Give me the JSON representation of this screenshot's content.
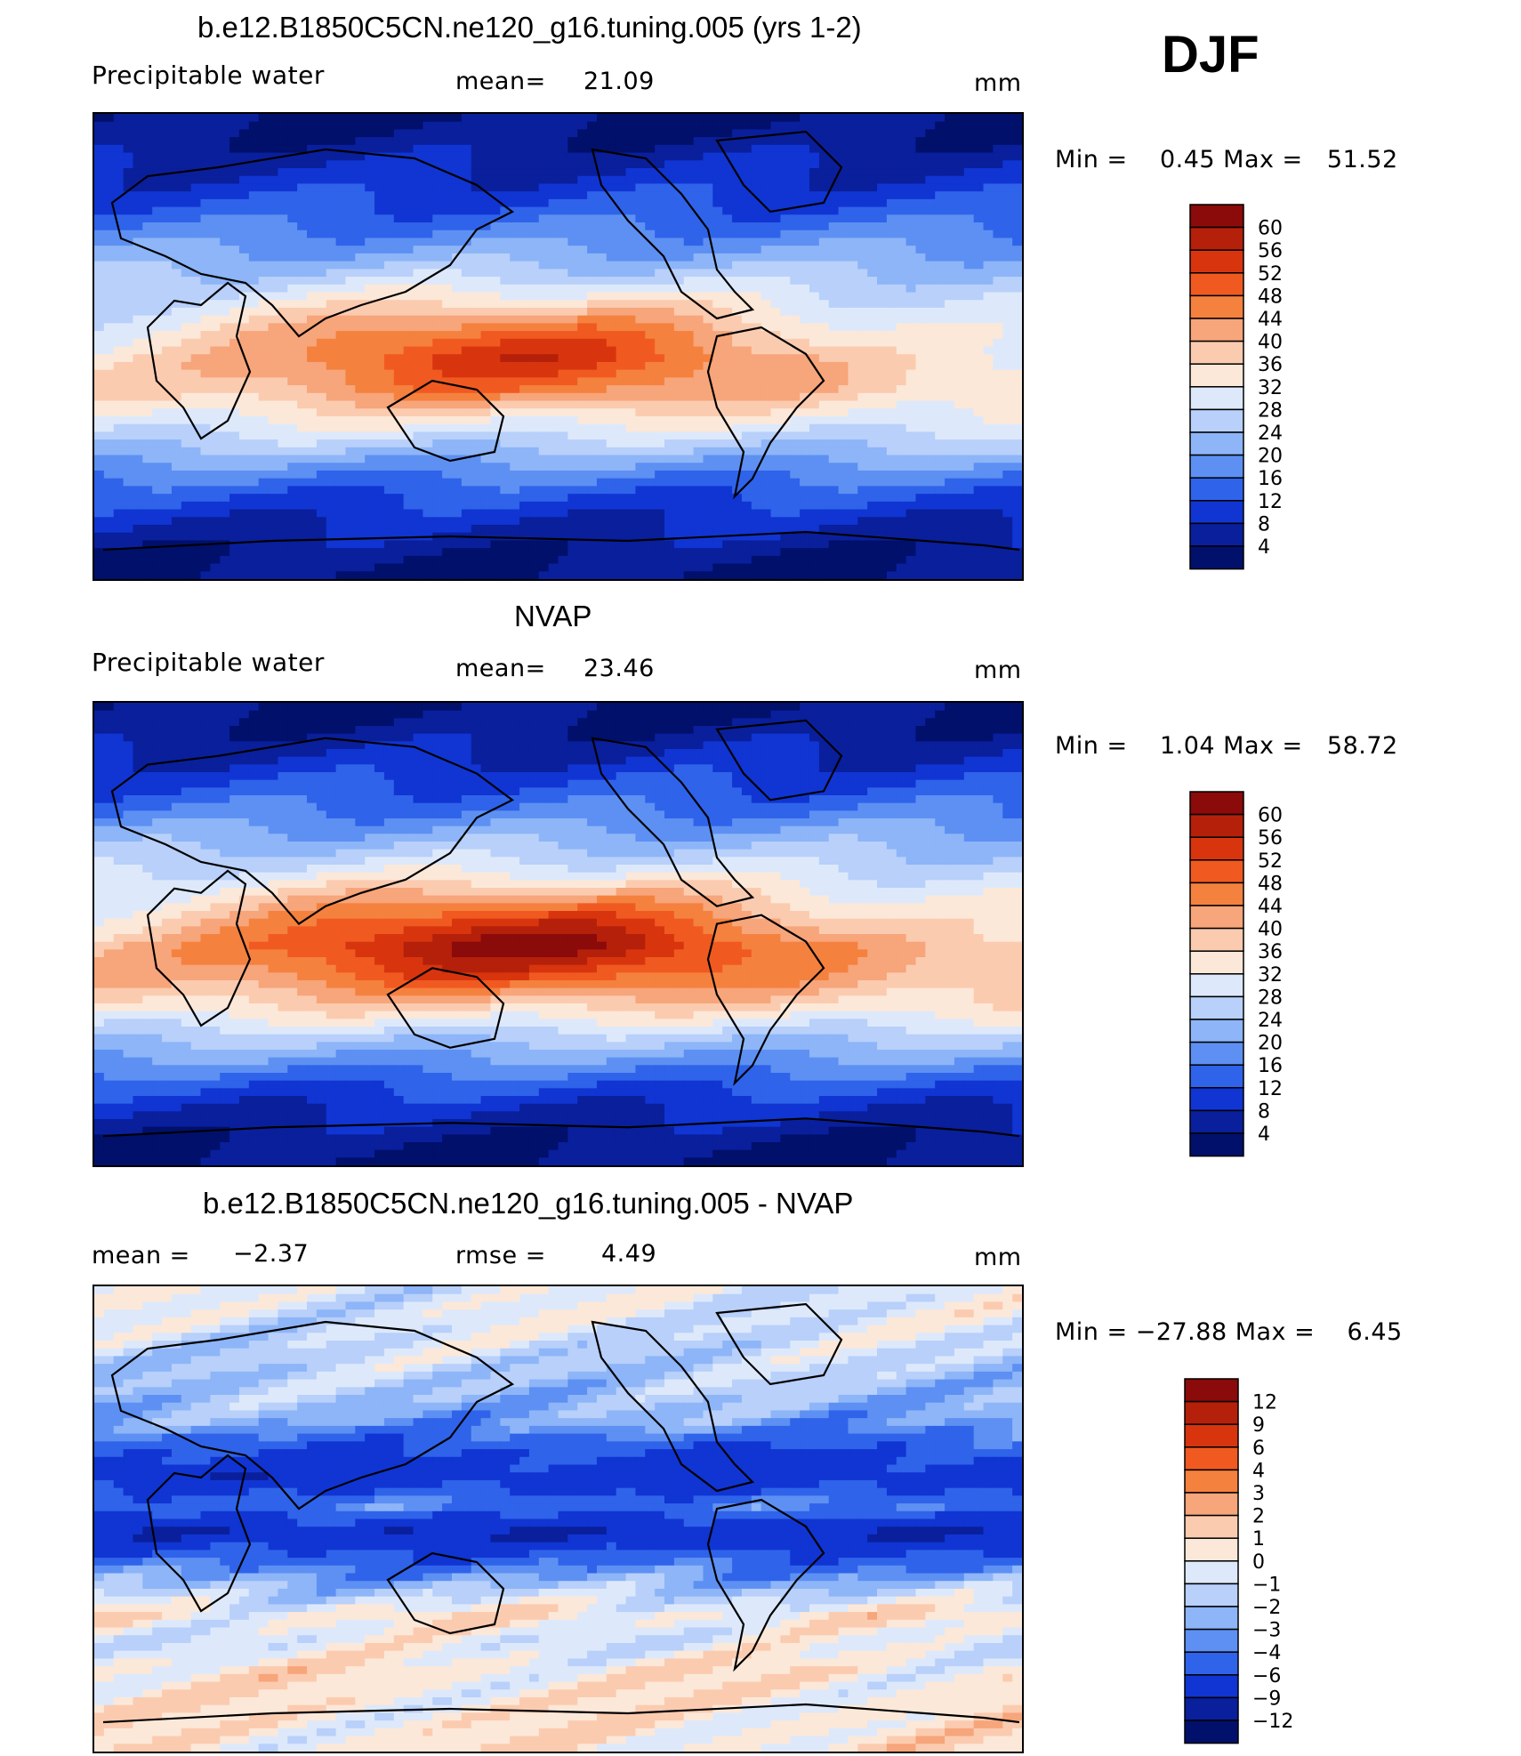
{
  "season": "DJF",
  "panels": [
    {
      "title": "b.e12.B1850C5CN.ne120_g16.tuning.005 (yrs 1-2)",
      "left_label": "Precipitable water",
      "center_label": "mean=",
      "center_value": "21.09",
      "units": "mm",
      "minmax_text": "Min =    0.45 Max =   51.52"
    },
    {
      "title": "NVAP",
      "left_label": "Precipitable water",
      "center_label": "mean=",
      "center_value": "23.46",
      "units": "mm",
      "minmax_text": "Min =    1.04 Max =   58.72"
    },
    {
      "title": "b.e12.B1850C5CN.ne120_g16.tuning.005 - NVAP",
      "left_label": "mean =",
      "left_value": "−2.37",
      "center_label": "rmse =",
      "center_value": "4.49",
      "units": "mm",
      "minmax_text": "Min = −27.88 Max =    6.45"
    }
  ],
  "chart_data": [
    {
      "type": "heatmap",
      "title": "b.e12.B1850C5CN.ne120_g16.tuning.005 (yrs 1-2)",
      "variable": "Precipitable water",
      "units": "mm",
      "mean": 21.09,
      "min": 0.45,
      "max": 51.52,
      "colorbar_levels": [
        "60",
        "56",
        "52",
        "48",
        "44",
        "40",
        "36",
        "32",
        "28",
        "24",
        "20",
        "16",
        "12",
        "8",
        "4"
      ],
      "colorbar_colors": [
        "#8b0a0a",
        "#b5200a",
        "#d8350e",
        "#f05a20",
        "#f5813f",
        "#f7a57a",
        "#fbcbb0",
        "#fce8d8",
        "#dde9fb",
        "#b8d0fa",
        "#8db5f8",
        "#5d90f2",
        "#2f63ea",
        "#1035d3",
        "#0a1f9c",
        "#00106b"
      ],
      "lat_bands_mm": [
        3,
        5,
        8,
        11,
        15,
        20,
        26,
        33,
        40,
        44,
        42,
        34,
        26,
        18,
        12,
        8,
        5,
        3
      ]
    },
    {
      "type": "heatmap",
      "title": "NVAP",
      "variable": "Precipitable water",
      "units": "mm",
      "mean": 23.46,
      "min": 1.04,
      "max": 58.72,
      "colorbar_levels": [
        "60",
        "56",
        "52",
        "48",
        "44",
        "40",
        "36",
        "32",
        "28",
        "24",
        "20",
        "16",
        "12",
        "8",
        "4"
      ],
      "colorbar_colors": [
        "#8b0a0a",
        "#b5200a",
        "#d8350e",
        "#f05a20",
        "#f5813f",
        "#f7a57a",
        "#fbcbb0",
        "#fce8d8",
        "#dde9fb",
        "#b8d0fa",
        "#8db5f8",
        "#5d90f2",
        "#2f63ea",
        "#1035d3",
        "#0a1f9c",
        "#00106b"
      ],
      "lat_bands_mm": [
        3,
        5,
        8,
        12,
        16,
        22,
        28,
        36,
        44,
        50,
        46,
        38,
        28,
        20,
        13,
        8,
        5,
        3
      ]
    },
    {
      "type": "heatmap",
      "title": "b.e12.B1850C5CN.ne120_g16.tuning.005 - NVAP",
      "variable": "difference",
      "units": "mm",
      "mean": -2.37,
      "rmse": 4.49,
      "min": -27.88,
      "max": 6.45,
      "colorbar_levels": [
        "12",
        "9",
        "6",
        "4",
        "3",
        "2",
        "1",
        "0",
        "−1",
        "−2",
        "−3",
        "−4",
        "−6",
        "−9",
        "−12"
      ],
      "colorbar_colors": [
        "#8b0a0a",
        "#b5200a",
        "#d8350e",
        "#f05a20",
        "#f5813f",
        "#f7a57a",
        "#fbcbb0",
        "#fce8d8",
        "#dde9fb",
        "#b8d0fa",
        "#8db5f8",
        "#5d90f2",
        "#2f63ea",
        "#1035d3",
        "#0a1f9c",
        "#00106b"
      ],
      "lat_bands_mm": [
        -0.5,
        -0.5,
        -1,
        -1.5,
        -2,
        -3,
        -6,
        -8,
        -4,
        -9,
        -5,
        -2,
        0.5,
        -0.5,
        0.5,
        0.5,
        0.5,
        0.5
      ]
    }
  ]
}
